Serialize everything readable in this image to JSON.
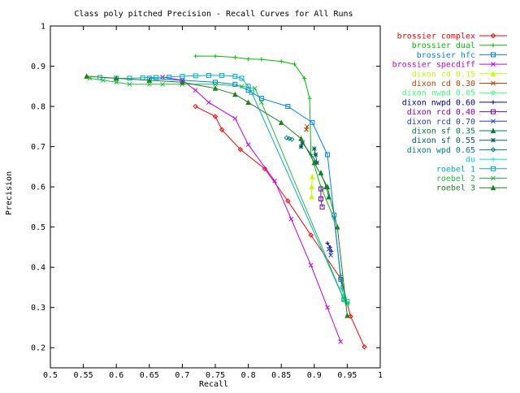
{
  "chart_data": {
    "type": "line",
    "title": "Class poly pitched Precision - Recall Curves for All Runs",
    "xlabel": "Recall",
    "ylabel": "Precision",
    "xlim": [
      0.5,
      1
    ],
    "ylim": [
      0.15,
      1
    ],
    "xticks": [
      "0.5",
      "0.55",
      "0.6",
      "0.65",
      "0.7",
      "0.75",
      "0.8",
      "0.85",
      "0.9",
      "0.95",
      "1"
    ],
    "yticks": [
      "0.2",
      "0.3",
      "0.4",
      "0.5",
      "0.6",
      "0.7",
      "0.8",
      "0.9",
      "1"
    ],
    "legend_position": "right",
    "series": [
      {
        "name": "brossier complex",
        "color": "#ff0000",
        "marker": "diamond",
        "points": [
          [
            0.976,
            0.202
          ],
          [
            0.955,
            0.278
          ],
          [
            0.94,
            0.372
          ],
          [
            0.895,
            0.48
          ],
          [
            0.86,
            0.565
          ],
          [
            0.825,
            0.645
          ],
          [
            0.788,
            0.693
          ],
          [
            0.76,
            0.742
          ],
          [
            0.75,
            0.775
          ],
          [
            0.72,
            0.8
          ]
        ]
      },
      {
        "name": "brossier dual",
        "color": "#00c000",
        "marker": "plus",
        "points": [
          [
            0.95,
            0.31
          ],
          [
            0.94,
            0.38
          ],
          [
            0.93,
            0.52
          ],
          [
            0.91,
            0.6
          ],
          [
            0.895,
            0.68
          ],
          [
            0.893,
            0.82
          ],
          [
            0.885,
            0.87
          ],
          [
            0.87,
            0.905
          ],
          [
            0.85,
            0.912
          ],
          [
            0.82,
            0.917
          ],
          [
            0.8,
            0.918
          ],
          [
            0.78,
            0.922
          ],
          [
            0.75,
            0.925
          ],
          [
            0.72,
            0.925
          ]
        ]
      },
      {
        "name": "brossier hfc",
        "color": "#0080ff",
        "marker": "square",
        "points": [
          [
            0.945,
            0.32
          ],
          [
            0.94,
            0.37
          ],
          [
            0.93,
            0.53
          ],
          [
            0.92,
            0.68
          ],
          [
            0.897,
            0.76
          ],
          [
            0.86,
            0.8
          ],
          [
            0.82,
            0.82
          ],
          [
            0.8,
            0.84
          ],
          [
            0.78,
            0.855
          ],
          [
            0.75,
            0.86
          ],
          [
            0.7,
            0.865
          ],
          [
            0.65,
            0.87
          ]
        ]
      },
      {
        "name": "brossier specdiff",
        "color": "#c000ff",
        "marker": "x",
        "points": [
          [
            0.94,
            0.215
          ],
          [
            0.92,
            0.3
          ],
          [
            0.895,
            0.405
          ],
          [
            0.865,
            0.52
          ],
          [
            0.84,
            0.615
          ],
          [
            0.8,
            0.705
          ],
          [
            0.78,
            0.77
          ],
          [
            0.74,
            0.81
          ],
          [
            0.72,
            0.84
          ],
          [
            0.7,
            0.865
          ],
          [
            0.67,
            0.873
          ]
        ]
      },
      {
        "name": "dixon cd 0.15",
        "color": "#c0ff00",
        "marker": "triangle",
        "points": [
          [
            0.896,
            0.575
          ],
          [
            0.896,
            0.6
          ],
          [
            0.897,
            0.625
          ]
        ]
      },
      {
        "name": "dixon cd 0.30",
        "color": "#c04000",
        "marker": "x",
        "points": [
          [
            0.888,
            0.742
          ],
          [
            0.889,
            0.75
          ]
        ]
      },
      {
        "name": "dixon nwpd 0.05",
        "color": "#40ff80",
        "marker": "diamond",
        "points": [
          [
            0.95,
            0.31
          ],
          [
            0.945,
            0.32
          ],
          [
            0.944,
            0.33
          ]
        ]
      },
      {
        "name": "dixon nwpd 0.60",
        "color": "#0000a0",
        "marker": "plus",
        "points": [
          [
            0.92,
            0.46
          ],
          [
            0.924,
            0.45
          ],
          [
            0.926,
            0.44
          ]
        ]
      },
      {
        "name": "dixon rcd 0.40",
        "color": "#8000c0",
        "marker": "square",
        "points": [
          [
            0.91,
            0.595
          ],
          [
            0.91,
            0.57
          ],
          [
            0.912,
            0.55
          ]
        ]
      },
      {
        "name": "dixon rcd 0.70",
        "color": "#2040c0",
        "marker": "x",
        "points": [
          [
            0.922,
            0.445
          ],
          [
            0.925,
            0.43
          ]
        ]
      },
      {
        "name": "dixon sf 0.35",
        "color": "#008040",
        "marker": "triangle",
        "points": [
          [
            0.91,
            0.635
          ],
          [
            0.918,
            0.6
          ],
          [
            0.922,
            0.575
          ]
        ]
      },
      {
        "name": "dixon sf 0.55",
        "color": "#006060",
        "marker": "asterisk",
        "points": [
          [
            0.9,
            0.695
          ],
          [
            0.902,
            0.68
          ],
          [
            0.904,
            0.66
          ],
          [
            0.882,
            0.71
          ],
          [
            0.88,
            0.7
          ]
        ]
      },
      {
        "name": "dixon wpd 0.65",
        "color": "#008080",
        "marker": "diamond",
        "points": [
          [
            0.858,
            0.722
          ],
          [
            0.862,
            0.72
          ],
          [
            0.866,
            0.718
          ]
        ]
      },
      {
        "name": "du",
        "color": "#00e0e0",
        "marker": "plus",
        "points": [
          [
            0.95,
            0.31
          ],
          [
            0.945,
            0.33
          ],
          [
            0.94,
            0.35
          ]
        ]
      },
      {
        "name": "roebel 1",
        "color": "#00b0c0",
        "marker": "square",
        "points": [
          [
            0.95,
            0.315
          ],
          [
            0.945,
            0.32
          ],
          [
            0.805,
            0.835
          ],
          [
            0.8,
            0.85
          ],
          [
            0.79,
            0.87
          ],
          [
            0.78,
            0.875
          ],
          [
            0.76,
            0.877
          ],
          [
            0.74,
            0.877
          ],
          [
            0.72,
            0.876
          ],
          [
            0.7,
            0.875
          ],
          [
            0.68,
            0.873
          ],
          [
            0.66,
            0.872
          ],
          [
            0.64,
            0.871
          ],
          [
            0.62,
            0.87
          ],
          [
            0.6,
            0.87
          ],
          [
            0.575,
            0.872
          ]
        ]
      },
      {
        "name": "roebel 2",
        "color": "#20c040",
        "marker": "x",
        "points": [
          [
            0.95,
            0.31
          ],
          [
            0.945,
            0.32
          ],
          [
            0.82,
            0.81
          ],
          [
            0.81,
            0.845
          ],
          [
            0.79,
            0.85
          ],
          [
            0.75,
            0.855
          ],
          [
            0.7,
            0.855
          ],
          [
            0.67,
            0.855
          ],
          [
            0.65,
            0.855
          ],
          [
            0.62,
            0.855
          ],
          [
            0.6,
            0.86
          ],
          [
            0.58,
            0.865
          ],
          [
            0.56,
            0.87
          ]
        ]
      },
      {
        "name": "roebel 3",
        "color": "#208020",
        "marker": "triangle",
        "points": [
          [
            0.95,
            0.28
          ],
          [
            0.935,
            0.5
          ],
          [
            0.92,
            0.6
          ],
          [
            0.9,
            0.66
          ],
          [
            0.88,
            0.72
          ],
          [
            0.85,
            0.76
          ],
          [
            0.8,
            0.81
          ],
          [
            0.78,
            0.83
          ],
          [
            0.75,
            0.845
          ],
          [
            0.7,
            0.86
          ],
          [
            0.65,
            0.865
          ],
          [
            0.6,
            0.87
          ],
          [
            0.555,
            0.875
          ]
        ]
      }
    ]
  }
}
